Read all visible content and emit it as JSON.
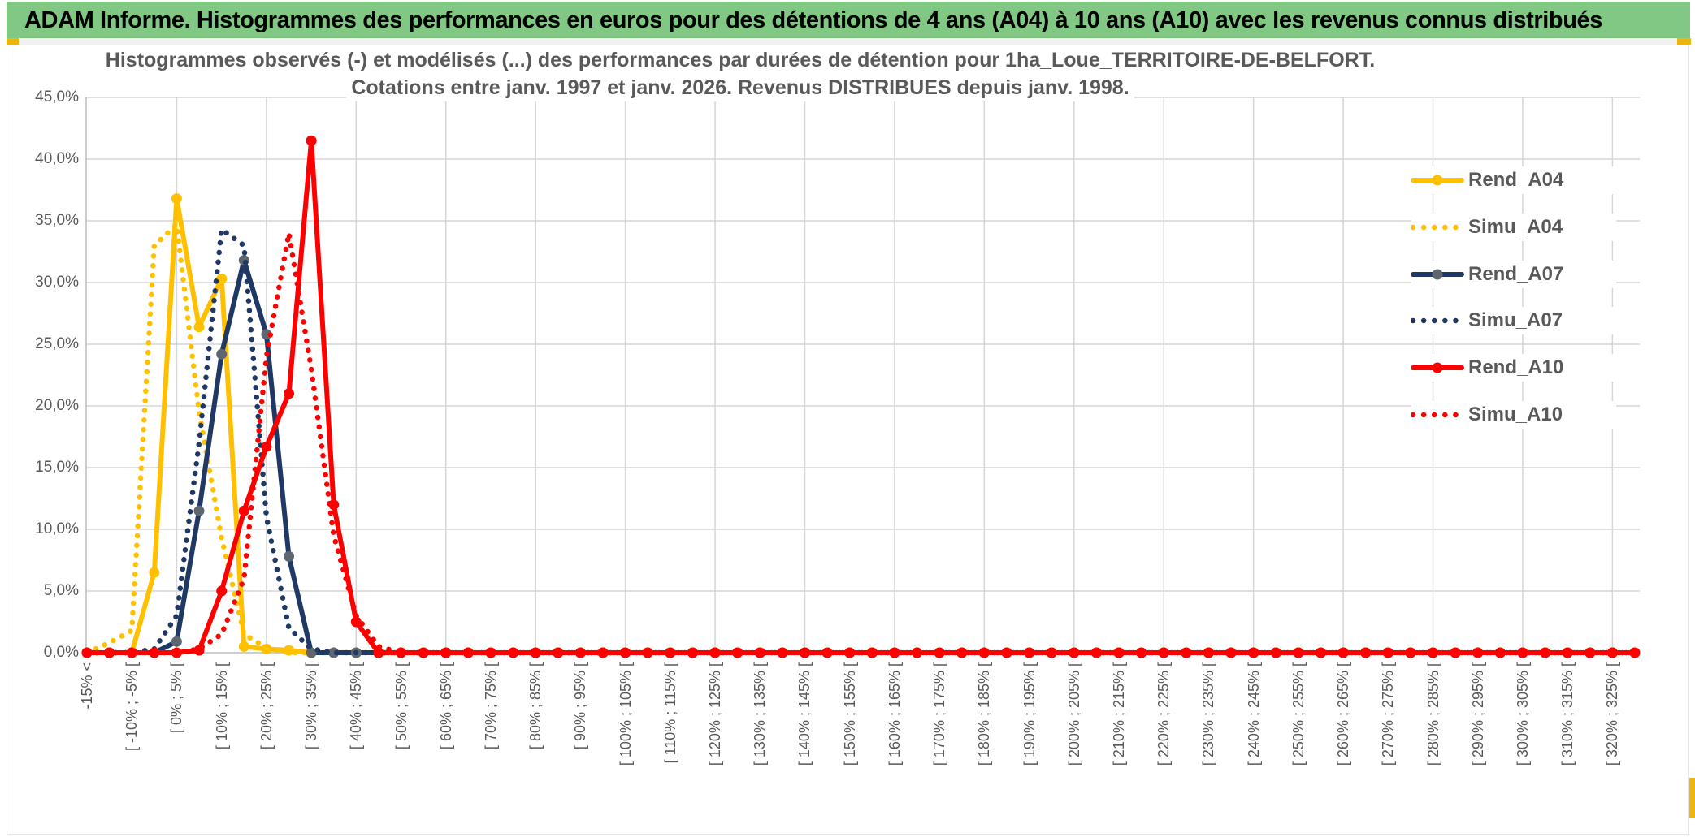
{
  "header": {
    "title": "ADAM Informe. Histogrammes des performances en euros pour des détentions de 4 ans (A04) à 10 ans (A10) avec les revenus connus distribués"
  },
  "colors": {
    "header_green": "#80C883",
    "gold_accent": "#EDB50E",
    "grid": "#D6D6D6",
    "axis": "#BDBDBD",
    "text_gray": "#595959",
    "series_gold": "#FFC000",
    "series_navy": "#1F3864",
    "series_red": "#FF0000",
    "navy_marker_gray": "#5E6670"
  },
  "chart_data": {
    "type": "line",
    "title_line1": "Histogrammes observés (-) et modélisés (...) des performances par durées de détention pour 1ha_Loue_TERRITOIRE-DE-BELFORT.",
    "title_line2": "Cotations entre janv. 1997 et janv. 2026. Revenus DISTRIBUES depuis janv. 1998.",
    "xlabel": "",
    "ylabel": "",
    "ylim": [
      0,
      45
    ],
    "y_tick_step": 5,
    "grid": "both",
    "legend_position": "right",
    "y_ticks": [
      "45,0%",
      "40,0%",
      "35,0%",
      "30,0%",
      "25,0%",
      "20,0%",
      "15,0%",
      "10,0%",
      "5,0%",
      "0,0%"
    ],
    "categories": [
      "-15% <",
      "",
      "[ -10% ; -5% [",
      "",
      "[ 0% ; 5% [",
      "",
      "[ 10% ; 15% [",
      "",
      "[ 20% ; 25% [",
      "",
      "[ 30% ; 35% [",
      "",
      "[ 40% ; 45% [",
      "",
      "[ 50% ; 55% [",
      "",
      "[ 60% ; 65% [",
      "",
      "[ 70% ; 75% [",
      "",
      "[ 80% ; 85% [",
      "",
      "[ 90% ; 95% [",
      "",
      "[ 100% ; 105% [",
      "",
      "[ 110% ; 115% [",
      "",
      "[ 120% ; 125% [",
      "",
      "[ 130% ; 135% [",
      "",
      "[ 140% ; 145% [",
      "",
      "[ 150% ; 155% [",
      "",
      "[ 160% ; 165% [",
      "",
      "[ 170% ; 175% [",
      "",
      "[ 180% ; 185% [",
      "",
      "[ 190% ; 195% [",
      "",
      "[ 200% ; 205% [",
      "",
      "[ 210% ; 215% [",
      "",
      "[ 220% ; 225% [",
      "",
      "[ 230% ; 235% [",
      "",
      "[ 240% ; 245% [",
      "",
      "[ 250% ; 255% [",
      "",
      "[ 260% ; 265% [",
      "",
      "[ 270% ; 275% [",
      "",
      "[ 280% ; 285% [",
      "",
      "[ 290% ; 295% [",
      "",
      "[ 300% ; 305% [",
      "",
      "[ 310% ; 315% [",
      "",
      "[ 320% ; 325% [",
      ""
    ],
    "series": [
      {
        "name": "Rend_A04",
        "color": "#FFC000",
        "style": "solid",
        "marker_color": "#FFC000",
        "values": [
          0,
          0,
          0,
          6.5,
          36.8,
          26.4,
          30.3,
          0.5,
          0.3,
          0.2,
          0,
          0,
          0,
          0,
          0,
          0,
          0,
          0,
          0,
          0,
          0,
          0,
          0,
          0,
          0,
          0,
          0,
          0,
          0,
          0,
          0,
          0,
          0,
          0,
          0,
          0,
          0,
          0,
          0,
          0,
          0,
          0,
          0,
          0,
          0,
          0,
          0,
          0,
          0,
          0,
          0,
          0,
          0,
          0,
          0,
          0,
          0,
          0,
          0,
          0,
          0,
          0,
          0,
          0,
          0,
          0,
          0,
          0,
          0,
          0
        ]
      },
      {
        "name": "Simu_A04",
        "color": "#FFC000",
        "style": "dotted",
        "values": [
          0,
          0.8,
          1.8,
          33,
          34.7,
          19.5,
          9.3,
          1.5,
          0.4,
          0,
          0,
          0,
          0,
          0,
          0,
          0,
          0,
          0,
          0,
          0,
          0,
          0,
          0,
          0,
          0,
          0,
          0,
          0,
          0,
          0,
          0,
          0,
          0,
          0,
          0,
          0,
          0,
          0,
          0,
          0,
          0,
          0,
          0,
          0,
          0,
          0,
          0,
          0,
          0,
          0,
          0,
          0,
          0,
          0,
          0,
          0,
          0,
          0,
          0,
          0,
          0,
          0,
          0,
          0,
          0,
          0,
          0,
          0,
          0,
          0
        ]
      },
      {
        "name": "Rend_A07",
        "color": "#1F3864",
        "style": "solid",
        "marker_color": "#5E6670",
        "values": [
          0,
          0,
          0,
          0,
          0.9,
          11.5,
          24.2,
          31.8,
          25.8,
          7.8,
          0,
          0,
          0,
          0,
          0,
          0,
          0,
          0,
          0,
          0,
          0,
          0,
          0,
          0,
          0,
          0,
          0,
          0,
          0,
          0,
          0,
          0,
          0,
          0,
          0,
          0,
          0,
          0,
          0,
          0,
          0,
          0,
          0,
          0,
          0,
          0,
          0,
          0,
          0,
          0,
          0,
          0,
          0,
          0,
          0,
          0,
          0,
          0,
          0,
          0,
          0,
          0,
          0,
          0,
          0,
          0,
          0,
          0,
          0,
          0
        ]
      },
      {
        "name": "Simu_A07",
        "color": "#1F3864",
        "style": "dotted",
        "values": [
          0,
          0,
          0,
          0.3,
          3,
          17,
          34.3,
          33,
          11,
          2,
          0.3,
          0,
          0,
          0,
          0,
          0,
          0,
          0,
          0,
          0,
          0,
          0,
          0,
          0,
          0,
          0,
          0,
          0,
          0,
          0,
          0,
          0,
          0,
          0,
          0,
          0,
          0,
          0,
          0,
          0,
          0,
          0,
          0,
          0,
          0,
          0,
          0,
          0,
          0,
          0,
          0,
          0,
          0,
          0,
          0,
          0,
          0,
          0,
          0,
          0,
          0,
          0,
          0,
          0,
          0,
          0,
          0,
          0,
          0,
          0
        ]
      },
      {
        "name": "Rend_A10",
        "color": "#FF0000",
        "style": "solid",
        "marker_color": "#FF0000",
        "values": [
          0,
          0,
          0,
          0,
          0,
          0.2,
          5,
          11.5,
          16.7,
          21,
          41.5,
          12,
          2.5,
          0,
          0,
          0,
          0,
          0,
          0,
          0,
          0,
          0,
          0,
          0,
          0,
          0,
          0,
          0,
          0,
          0,
          0,
          0,
          0,
          0,
          0,
          0,
          0,
          0,
          0,
          0,
          0,
          0,
          0,
          0,
          0,
          0,
          0,
          0,
          0,
          0,
          0,
          0,
          0,
          0,
          0,
          0,
          0,
          0,
          0,
          0,
          0,
          0,
          0,
          0,
          0,
          0,
          0,
          0,
          0,
          0
        ]
      },
      {
        "name": "Simu_A10",
        "color": "#FF0000",
        "style": "dotted",
        "values": [
          0,
          0,
          0,
          0,
          0,
          0.3,
          1.5,
          6,
          24,
          34,
          23,
          9.5,
          3,
          0.5,
          0,
          0,
          0,
          0,
          0,
          0,
          0,
          0,
          0,
          0,
          0,
          0,
          0,
          0,
          0,
          0,
          0,
          0,
          0,
          0,
          0,
          0,
          0,
          0,
          0,
          0,
          0,
          0,
          0,
          0,
          0,
          0,
          0,
          0,
          0,
          0,
          0,
          0,
          0,
          0,
          0,
          0,
          0,
          0,
          0,
          0,
          0,
          0,
          0,
          0,
          0,
          0,
          0,
          0,
          0,
          0
        ]
      }
    ]
  }
}
